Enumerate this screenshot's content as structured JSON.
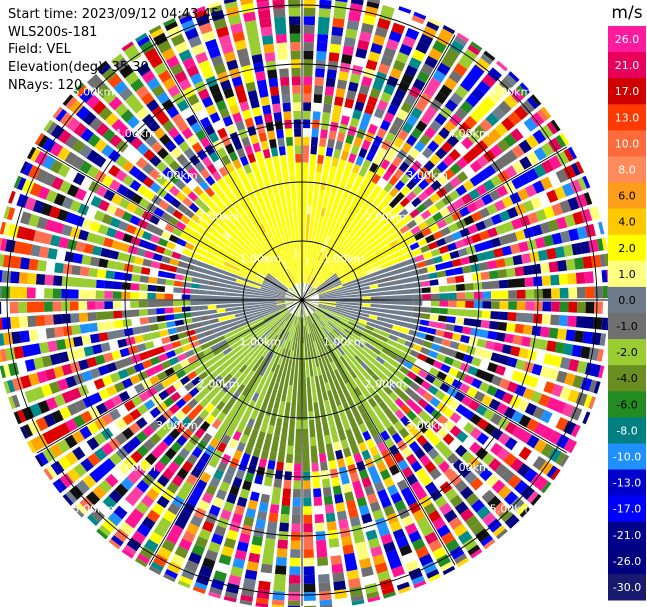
{
  "info": {
    "start_time": "Start time: 2023/09/12 04:43:45",
    "instrument": "WLS200s-181",
    "field": "Field: VEL",
    "elevation": "Elevation(deg): 35.30",
    "nrays": "NRays: 120"
  },
  "ppi": {
    "field": "VEL",
    "n_rays": 120,
    "ring_labels": [
      "1.00km",
      "2.00km",
      "3.00km",
      "4.00km",
      "5.00km"
    ],
    "ring_radii_km": [
      1,
      2,
      3,
      4,
      5
    ]
  },
  "colorbar": {
    "unit": "m/s",
    "ticks": [
      "26.0",
      "21.0",
      "17.0",
      "13.0",
      "10.0",
      "8.0",
      "6.0",
      "4.0",
      "2.0",
      "1.0",
      "0.0",
      "-1.0",
      "-2.0",
      "-4.0",
      "-6.0",
      "-8.0",
      "-10.0",
      "-13.0",
      "-17.0",
      "-21.0",
      "-26.0",
      "-30.0"
    ],
    "colors": [
      "#ff1a9e",
      "#e8005a",
      "#d00000",
      "#ff3a00",
      "#ff6a3a",
      "#ff8a5a",
      "#ff9e1a",
      "#ffc800",
      "#ffff00",
      "#ffff80",
      "#6e7b8b",
      "#707070",
      "#9acd32",
      "#6b8e23",
      "#228b22",
      "#008080",
      "#1e90ff",
      "#0000cd",
      "#0000ff",
      "#00008b",
      "#000080",
      "#191970"
    ]
  }
}
